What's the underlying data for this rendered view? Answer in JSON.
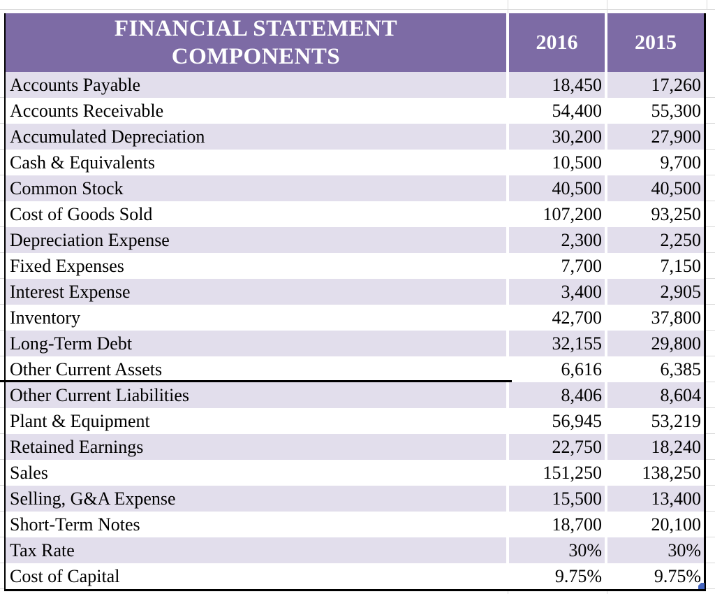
{
  "sheet": {
    "header": {
      "title_line1": "FINANCIAL STATEMENT",
      "title_line2": "COMPONENTS",
      "col_2016": "2016",
      "col_2015": "2015"
    },
    "rows": [
      {
        "label": "Accounts Payable",
        "v2016": "18,450",
        "v2015": "17,260"
      },
      {
        "label": "Accounts Receivable",
        "v2016": "54,400",
        "v2015": "55,300"
      },
      {
        "label": "Accumulated Depreciation",
        "v2016": "30,200",
        "v2015": "27,900"
      },
      {
        "label": "Cash & Equivalents",
        "v2016": "10,500",
        "v2015": "9,700"
      },
      {
        "label": "Common Stock",
        "v2016": "40,500",
        "v2015": "40,500"
      },
      {
        "label": "Cost of Goods Sold",
        "v2016": "107,200",
        "v2015": "93,250"
      },
      {
        "label": "Depreciation Expense",
        "v2016": "2,300",
        "v2015": "2,250"
      },
      {
        "label": "Fixed Expenses",
        "v2016": "7,700",
        "v2015": "7,150"
      },
      {
        "label": "Interest Expense",
        "v2016": "3,400",
        "v2015": "2,905"
      },
      {
        "label": "Inventory",
        "v2016": "42,700",
        "v2015": "37,800"
      },
      {
        "label": "Long-Term Debt",
        "v2016": "32,155",
        "v2015": "29,800"
      },
      {
        "label": "Other Current Assets",
        "v2016": "6,616",
        "v2015": "6,385",
        "divider": true
      },
      {
        "label": "Other Current Liabilities",
        "v2016": "8,406",
        "v2015": "8,604"
      },
      {
        "label": "Plant & Equipment",
        "v2016": "56,945",
        "v2015": "53,219"
      },
      {
        "label": "Retained Earnings",
        "v2016": "22,750",
        "v2015": "18,240"
      },
      {
        "label": "Sales",
        "v2016": "151,250",
        "v2015": "138,250"
      },
      {
        "label": "Selling, G&A Expense",
        "v2016": "15,500",
        "v2015": "13,400"
      },
      {
        "label": "Short-Term Notes",
        "v2016": "18,700",
        "v2015": "20,100"
      },
      {
        "label": "Tax Rate",
        "v2016": "30%",
        "v2015": "30%"
      },
      {
        "label": "Cost of Capital",
        "v2016": "9.75%",
        "v2015": "9.75%"
      }
    ],
    "colors": {
      "header_bg": "#7D6BA5",
      "band_bg": "#E2DEEC",
      "border_black": "#000000",
      "gridline_gray": "#D9D9D9",
      "marker_blue": "#4565BE",
      "text": "#000000",
      "header_text": "#FFFFFF"
    }
  }
}
